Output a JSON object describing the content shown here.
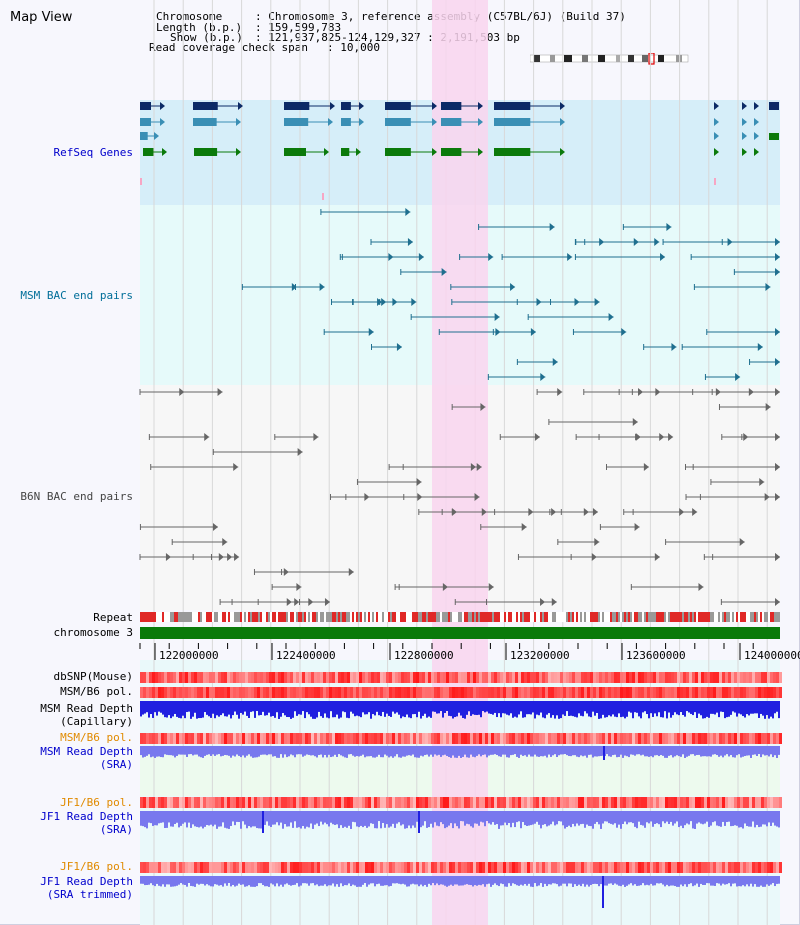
{
  "app": {
    "title": "Map View"
  },
  "info": {
    "chromosome_key": "Chromosome",
    "chromosome_val": ": Chromosome 3, reference assembly (C57BL/6J) (Build 37)",
    "length_key": "Length (b.p.)",
    "length_val": ": 159,599,783",
    "show_key": "Show (b.p.)",
    "show_val": ": 121,937,825-124,129,327 : 2,191,503 bp",
    "coverage_key": "Read coverage check span",
    "coverage_val": ": 10,000"
  },
  "tracks": {
    "refseq": "RefSeq Genes",
    "msm_bac": "MSM BAC end pairs",
    "b6n_bac": "B6N BAC end pairs",
    "repeat": "Repeat",
    "chromosome": "chromosome 3",
    "dbsnp": "dbSNP(Mouse)",
    "msm_b6_pol": "MSM/B6 pol.",
    "msm_depth_cap_1": "MSM Read Depth",
    "msm_depth_cap_2": "(Capillary)",
    "msm_b6_pol2": "MSM/B6 pol.",
    "msm_depth_sra_1": "MSM Read Depth",
    "msm_depth_sra_2": "(SRA)",
    "jf1_pol": "JF1/B6 pol.",
    "jf1_depth_1": "JF1 Read Depth",
    "jf1_depth_2": "(SRA)",
    "jf1_pol2": "JF1/B6 pol.",
    "jf1_trim_1": "JF1 Read Depth",
    "jf1_trim_2": "(SRA trimmed)"
  },
  "scale": {
    "ticks": [
      "122000000",
      "122400000",
      "122800000",
      "123200000",
      "123600000",
      "124000000"
    ]
  },
  "colors": {
    "highlight": "#f9d5ef",
    "refseq_bg": "#d6eef9",
    "msm_bg": "#e6fafa",
    "b6n_bg": "#f7f7f7",
    "gene_navy": "#0c2a66",
    "gene_teal": "#3a8fb5",
    "gene_green": "#0b7a0b",
    "msm_pair": "#1f6f8f",
    "b6n_pair": "#666666",
    "chromosome_bar": "#0a7a0a",
    "depth_blue": "#2020e0",
    "depth_light": "#7878ee"
  }
}
